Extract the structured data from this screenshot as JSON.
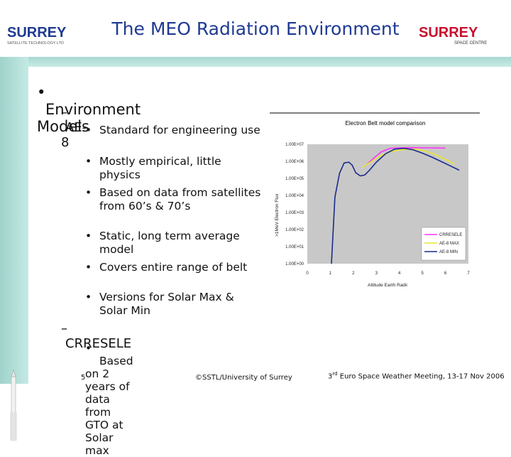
{
  "header": {
    "title": "The MEO Radiation Environment",
    "logo_left_text": "SURREY",
    "logo_left_sub": "SATELLITE TECHNOLOGY LTD",
    "logo_right_text": "SURREY",
    "logo_right_sub": "SPACE CENTRE"
  },
  "bullets": {
    "level1": "Environment Models",
    "ae8": "AE-8",
    "ae8_items": [
      "Standard for engineering use",
      "Mostly empirical, little physics",
      "Based on data from satellites from 60’s & 70’s",
      "Static, long term average model",
      "Covers entire range of belt",
      "Versions for Solar Max & Solar Min"
    ],
    "crresele": "CRRESELE",
    "crresele_items": [
      "Based on 2 years of data from GTO at Solar max"
    ]
  },
  "chart_data": {
    "type": "line",
    "title": "Electron Belt model comparison",
    "xlabel": "Altitude Earth Radii",
    "ylabel": ">1MeV Electron Flux",
    "xlim": [
      0,
      7
    ],
    "x_ticks": [
      "0",
      "1",
      "2",
      "3",
      "4",
      "5",
      "6",
      "7"
    ],
    "y_ticks": [
      "1.00E+00",
      "1.00E+01",
      "1.00E+02",
      "1.00E+03",
      "1.00E+04",
      "1.00E+05",
      "1.00E+06",
      "1.00E+07"
    ],
    "legend_position": "bottom-right",
    "series": [
      {
        "name": "CRRESELE",
        "color": "#ff33ff",
        "x": [
          2.5,
          2.8,
          3.2,
          3.6,
          4.0,
          4.4,
          4.8,
          5.2,
          5.6,
          6.0
        ],
        "y": [
          520000.0,
          1200000.0,
          3500000.0,
          5800000.0,
          6200000.0,
          6300000.0,
          6300000.0,
          6200000.0,
          6100000.0,
          6000000.0
        ]
      },
      {
        "name": "AE-8 MAX",
        "color": "#e8e82a",
        "x": [
          2.4,
          2.8,
          3.2,
          3.6,
          4.0,
          4.4,
          4.8,
          5.2,
          5.6,
          6.0,
          6.4
        ],
        "y": [
          450000.0,
          1000000.0,
          2200000.0,
          3600000.0,
          4600000.0,
          5200000.0,
          5000000.0,
          3800000.0,
          2400000.0,
          1300000.0,
          700000.0
        ]
      },
      {
        "name": "AE-8 MIN",
        "color": "#1a2a8c",
        "x": [
          1.05,
          1.2,
          1.4,
          1.6,
          1.8,
          1.95,
          2.1,
          2.3,
          2.5,
          2.7,
          3.0,
          3.4,
          3.8,
          4.2,
          4.6,
          5.0,
          5.4,
          5.8,
          6.2,
          6.6
        ],
        "y": [
          1.0,
          8000.0,
          200000.0,
          800000.0,
          900000.0,
          600000.0,
          220000.0,
          140000.0,
          160000.0,
          300000.0,
          900000.0,
          2800000.0,
          5200000.0,
          5800000.0,
          4800000.0,
          3000000.0,
          1800000.0,
          1000000.0,
          550000.0,
          300000.0
        ]
      }
    ]
  },
  "footer": {
    "page_number": "5",
    "center": "©SSTL/University of Surrey",
    "right_sup": "rd",
    "right_pre": "3",
    "right_post": " Euro Space Weather Meeting, 13-17 Nov 2006"
  },
  "colors": {
    "title": "#1f3a93",
    "sidebar": "#a9d8d1",
    "logo_blue": "#1f3a93",
    "logo_red": "#c8102e"
  }
}
